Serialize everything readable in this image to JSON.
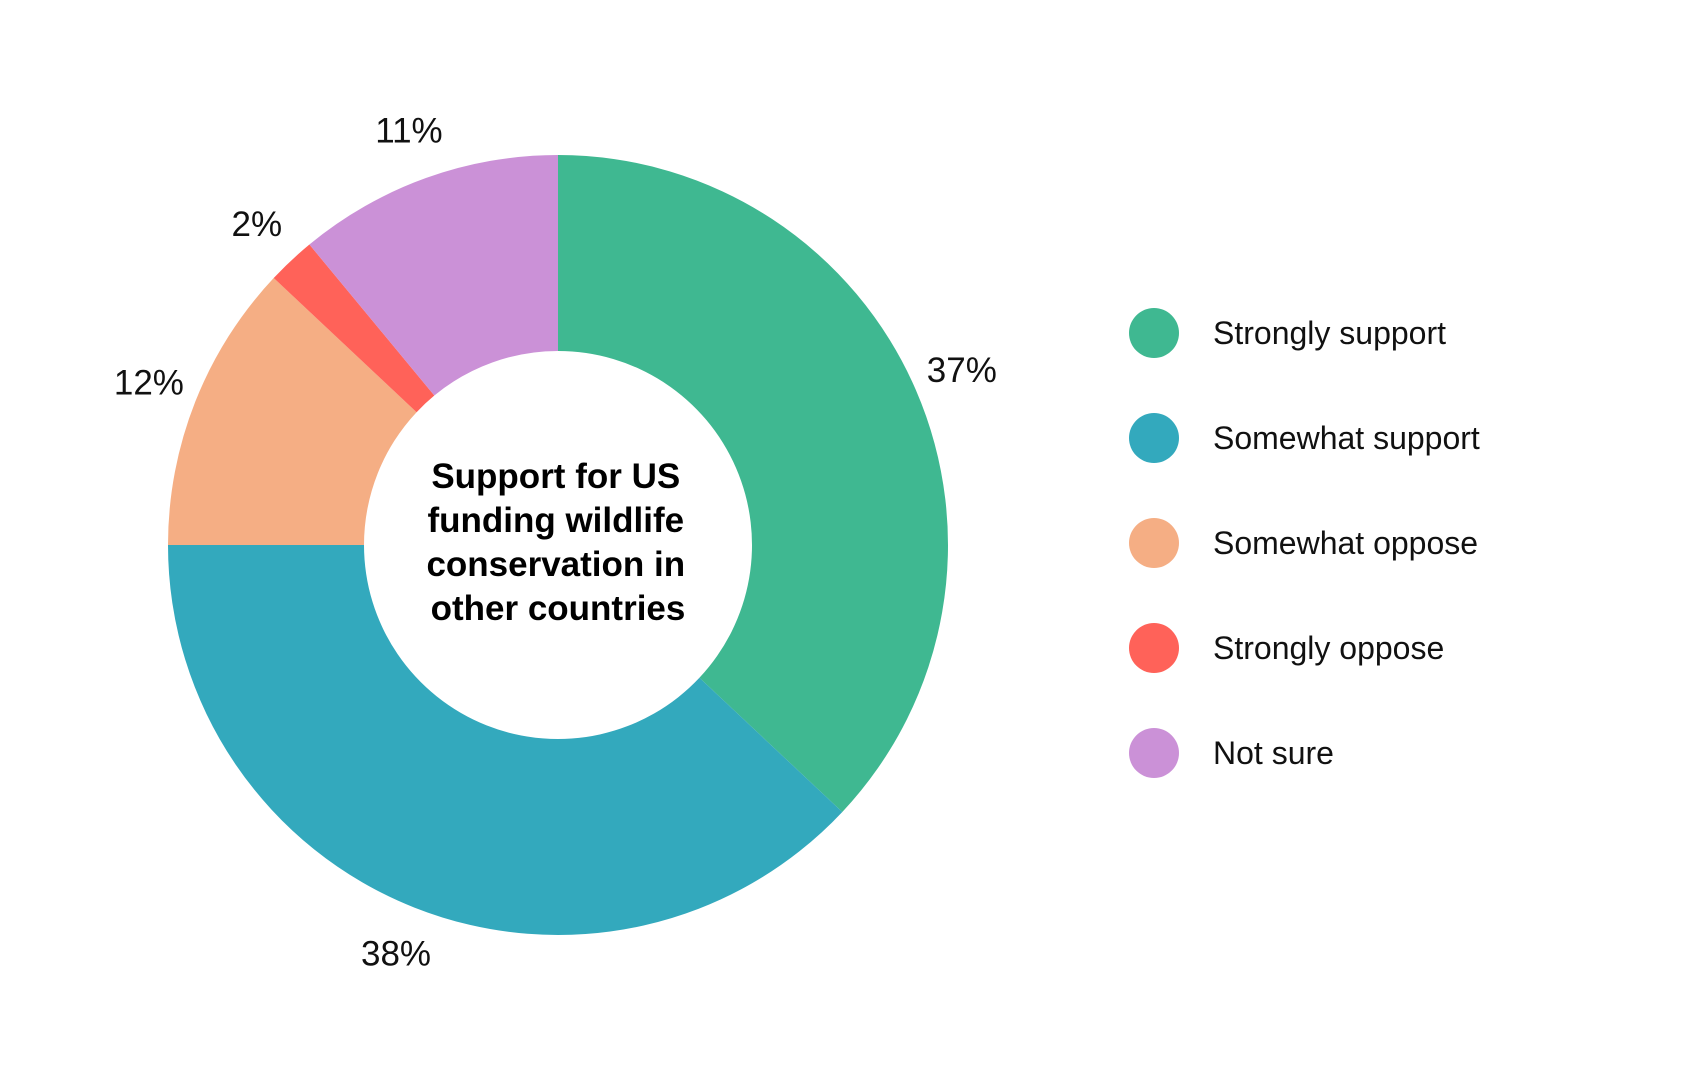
{
  "chart_data": {
    "type": "pie",
    "variant": "donut",
    "title": "Support for US funding wildlife conservation in other countries",
    "title_lines": [
      "Support for US",
      "funding wildlife",
      "conservation in",
      "other countries"
    ],
    "unit": "%",
    "legend_position": "right",
    "slices": [
      {
        "name": "Strongly support",
        "value": 37,
        "label": "37%",
        "color": "#3fb891"
      },
      {
        "name": "Somewhat support",
        "value": 38,
        "label": "38%",
        "color": "#33a9bd"
      },
      {
        "name": "Somewhat oppose",
        "value": 12,
        "label": "12%",
        "color": "#f5ae84"
      },
      {
        "name": "Strongly oppose",
        "value": 2,
        "label": "2%",
        "color": "#ff6259"
      },
      {
        "name": "Not sure",
        "value": 11,
        "label": "11%",
        "color": "#cb91d7"
      }
    ]
  }
}
